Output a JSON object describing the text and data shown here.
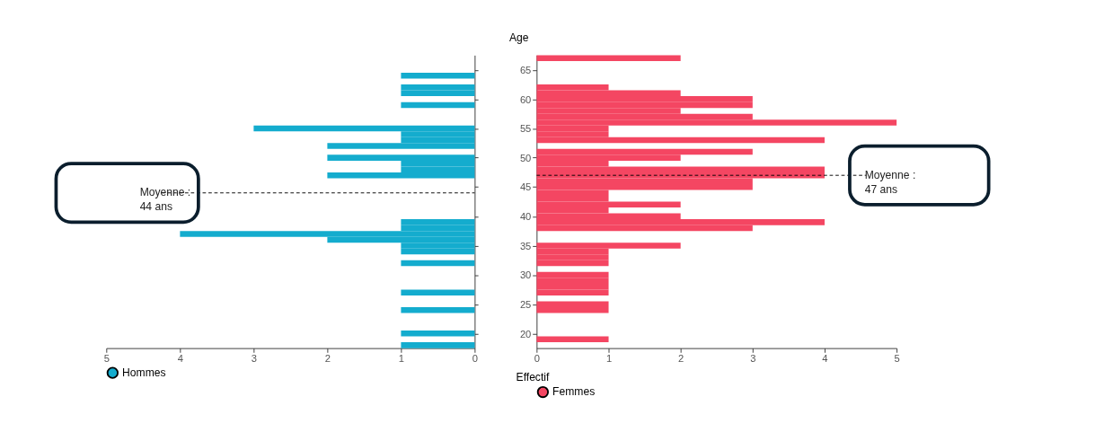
{
  "chart_data": [
    {
      "type": "histogram",
      "orientation": "horizontal",
      "bins": [
        17.5,
        18.5,
        19.5,
        20.5,
        21.5,
        22.5,
        23.5,
        24.5,
        25.5,
        26.5,
        27.5,
        28.5,
        29.5,
        30.5,
        31.5,
        32.5,
        33.5,
        34.5,
        35.5,
        36.5,
        37.5,
        38.5,
        39.5,
        40.5,
        41.5,
        42.5,
        43.5,
        44.5,
        45.5,
        46.5,
        47.5,
        48.5,
        49.5,
        50.5,
        51.5,
        52.5,
        53.5,
        54.5,
        55.5,
        56.5,
        57.5,
        58.5,
        59.5,
        60.5,
        61.5,
        62.5,
        63.5,
        64.5,
        65.5,
        66.5,
        67.5
      ],
      "series": [
        {
          "name": "Hommes",
          "color": "#14acce",
          "values": [
            1,
            0,
            1,
            0,
            0,
            0,
            1,
            0,
            0,
            1,
            0,
            0,
            0,
            0,
            1,
            0,
            1,
            1,
            2,
            4,
            1,
            1,
            0,
            0,
            0,
            0,
            0,
            0,
            0,
            2,
            1,
            1,
            2,
            0,
            2,
            1,
            1,
            3,
            0,
            0,
            0,
            1,
            0,
            1,
            1,
            0,
            1,
            0,
            0,
            0
          ]
        }
      ],
      "xlim": [
        5,
        0
      ],
      "xticks": [
        5,
        4,
        3,
        2,
        1,
        0
      ],
      "ylim": [
        17.5,
        67.5
      ],
      "yticks": [
        20,
        25,
        30,
        35,
        40,
        45,
        50,
        55,
        60,
        65
      ],
      "tick_labels": "x",
      "grid": false,
      "legend": "bottom",
      "ref_lines": [
        {
          "axis": "y",
          "value": 44,
          "label": "Moyenne :\n44 ans",
          "color": "#000000",
          "line_style": "dashed"
        }
      ]
    },
    {
      "type": "histogram",
      "orientation": "horizontal",
      "bins": [
        17.5,
        18.5,
        19.5,
        20.5,
        21.5,
        22.5,
        23.5,
        24.5,
        25.5,
        26.5,
        27.5,
        28.5,
        29.5,
        30.5,
        31.5,
        32.5,
        33.5,
        34.5,
        35.5,
        36.5,
        37.5,
        38.5,
        39.5,
        40.5,
        41.5,
        42.5,
        43.5,
        44.5,
        45.5,
        46.5,
        47.5,
        48.5,
        49.5,
        50.5,
        51.5,
        52.5,
        53.5,
        54.5,
        55.5,
        56.5,
        57.5,
        58.5,
        59.5,
        60.5,
        61.5,
        62.5,
        63.5,
        64.5,
        65.5,
        66.5,
        67.5
      ],
      "series": [
        {
          "name": "Femmes",
          "color": "#f44662",
          "values": [
            0,
            1,
            0,
            0,
            0,
            0,
            1,
            1,
            0,
            1,
            1,
            1,
            1,
            0,
            1,
            1,
            1,
            2,
            0,
            0,
            3,
            4,
            2,
            1,
            2,
            1,
            1,
            3,
            3,
            4,
            4,
            1,
            2,
            3,
            0,
            4,
            1,
            1,
            5,
            3,
            2,
            3,
            3,
            2,
            1,
            0,
            0,
            0,
            0,
            2
          ]
        }
      ],
      "xlim": [
        0,
        5
      ],
      "xticks": [
        0,
        1,
        2,
        3,
        4,
        5
      ],
      "ylim": [
        17.5,
        67.5
      ],
      "yticks": [
        20,
        25,
        30,
        35,
        40,
        45,
        50,
        55,
        60,
        65
      ],
      "xlabel": "Effectif",
      "ylabel": "Age",
      "grid": false,
      "legend": "bottom",
      "ref_lines": [
        {
          "axis": "y",
          "value": 47,
          "label": "Moyenne :\n47 ans",
          "color": "#000000",
          "line_style": "dashed"
        }
      ]
    }
  ]
}
